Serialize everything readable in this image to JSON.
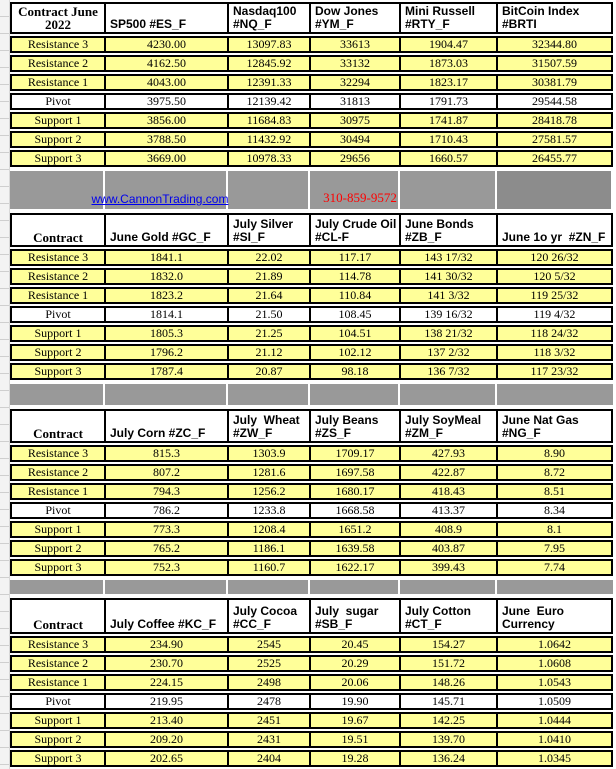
{
  "colors": {
    "row_yellow": "#FFFF99",
    "band_gray": "#999999",
    "band_gray_dark": "#8C8C8C",
    "link_blue": "#0000EE",
    "phone_red": "#FF0000",
    "border_black": "#000000"
  },
  "banner": {
    "link": "www.CannonTrading.com",
    "phone": "310-859-9572"
  },
  "row_labels": [
    "Resistance 3",
    "Resistance 2",
    "Resistance 1",
    "Pivot",
    "Support 1",
    "Support 2",
    "Support 3"
  ],
  "sections": [
    {
      "contract_label": "Contract June\n2022",
      "columns": [
        "SP500 #ES_F",
        "Nasdaq100\n#NQ_F",
        "Dow Jones\n#YM_F",
        "Mini Russell\n#RTY_F",
        "BitCoin Index #BRTI"
      ],
      "rows": [
        [
          "4230.00",
          "13097.83",
          "33613",
          "1904.47",
          "32344.80"
        ],
        [
          "4162.50",
          "12845.92",
          "33132",
          "1873.03",
          "31507.59"
        ],
        [
          "4043.00",
          "12391.33",
          "32294",
          "1823.17",
          "30381.79"
        ],
        [
          "3975.50",
          "12139.42",
          "31813",
          "1791.73",
          "29544.58"
        ],
        [
          "3856.00",
          "11684.83",
          "30975",
          "1741.87",
          "28418.78"
        ],
        [
          "3788.50",
          "11432.92",
          "30494",
          "1710.43",
          "27581.57"
        ],
        [
          "3669.00",
          "10978.33",
          "29656",
          "1660.57",
          "26455.77"
        ]
      ]
    },
    {
      "contract_label": "Contract",
      "columns": [
        "June Gold #GC_F",
        "July Silver\n#SI_F",
        "July Crude Oil\n#CL-F",
        "June Bonds\n#ZB_F",
        "June 1o yr  #ZN_F"
      ],
      "rows": [
        [
          "1841.1",
          "22.02",
          "117.17",
          "143 17/32",
          "120 26/32"
        ],
        [
          "1832.0",
          "21.89",
          "114.78",
          "141 30/32",
          "120  5/32"
        ],
        [
          "1823.2",
          "21.64",
          "110.84",
          "141  3/32",
          "119 25/32"
        ],
        [
          "1814.1",
          "21.50",
          "108.45",
          "139 16/32",
          "119  4/32"
        ],
        [
          "1805.3",
          "21.25",
          "104.51",
          "138 21/32",
          "118 24/32"
        ],
        [
          "1796.2",
          "21.12",
          "102.12",
          "137  2/32",
          "118  3/32"
        ],
        [
          "1787.4",
          "20.87",
          "98.18",
          "136  7/32",
          "117 23/32"
        ]
      ]
    },
    {
      "contract_label": "Contract",
      "columns": [
        "July Corn #ZC_F",
        "July  Wheat\n#ZW_F",
        "July Beans\n#ZS_F",
        "July SoyMeal\n#ZM_F",
        "June Nat Gas\n#NG_F"
      ],
      "rows": [
        [
          "815.3",
          "1303.9",
          "1709.17",
          "427.93",
          "8.90"
        ],
        [
          "807.2",
          "1281.6",
          "1697.58",
          "422.87",
          "8.72"
        ],
        [
          "794.3",
          "1256.2",
          "1680.17",
          "418.43",
          "8.51"
        ],
        [
          "786.2",
          "1233.8",
          "1668.58",
          "413.37",
          "8.34"
        ],
        [
          "773.3",
          "1208.4",
          "1651.2",
          "408.9",
          "8.1"
        ],
        [
          "765.2",
          "1186.1",
          "1639.58",
          "403.87",
          "7.95"
        ],
        [
          "752.3",
          "1160.7",
          "1622.17",
          "399.43",
          "7.74"
        ]
      ]
    },
    {
      "contract_label": "Contract",
      "columns": [
        "July Coffee #KC_F",
        "July Cocoa\n#CC_F",
        "July  sugar\n#SB_F",
        "July Cotton\n#CT_F",
        "June  Euro\nCurrency"
      ],
      "rows": [
        [
          "234.90",
          "2545",
          "20.45",
          "154.27",
          "1.0642"
        ],
        [
          "230.70",
          "2525",
          "20.29",
          "151.72",
          "1.0608"
        ],
        [
          "224.15",
          "2498",
          "20.06",
          "148.26",
          "1.0543"
        ],
        [
          "219.95",
          "2478",
          "19.90",
          "145.71",
          "1.0509"
        ],
        [
          "213.40",
          "2451",
          "19.67",
          "142.25",
          "1.0444"
        ],
        [
          "209.20",
          "2431",
          "19.51",
          "139.70",
          "1.0410"
        ],
        [
          "202.65",
          "2404",
          "19.28",
          "136.24",
          "1.0345"
        ]
      ]
    }
  ]
}
